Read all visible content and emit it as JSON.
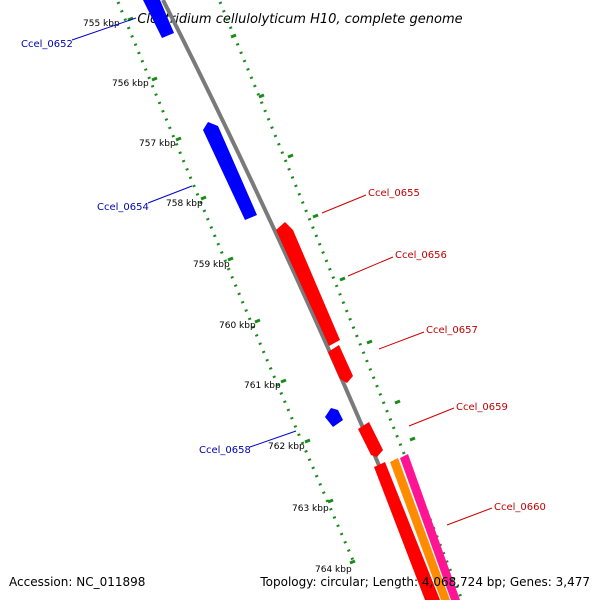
{
  "title": "Clostridium cellulolyticum H10, complete genome",
  "ticks": [
    "755 kbp",
    "756 kbp",
    "757 kbp",
    "758 kbp",
    "759 kbp",
    "760 kbp",
    "761 kbp",
    "762 kbp",
    "763 kbp",
    "764 kbp"
  ],
  "genes_forward_strand": [
    "Ccel_0655",
    "Ccel_0656",
    "Ccel_0657",
    "Ccel_0659",
    "Ccel_0660"
  ],
  "genes_reverse_strand": [
    "Ccel_0652",
    "Ccel_0654",
    "Ccel_0658"
  ],
  "footer": {
    "accession": "Accession: NC_011898",
    "topology": "Topology: circular; Length: 4,068,724 bp; Genes: 3,477"
  },
  "colors": {
    "forward_cds": "#ff0000",
    "reverse_cds": "#0000ff",
    "backbone": "#808080",
    "gc_track": "#008000",
    "rna_orange": "#ff8c00",
    "rna_pink": "#ff1493"
  }
}
